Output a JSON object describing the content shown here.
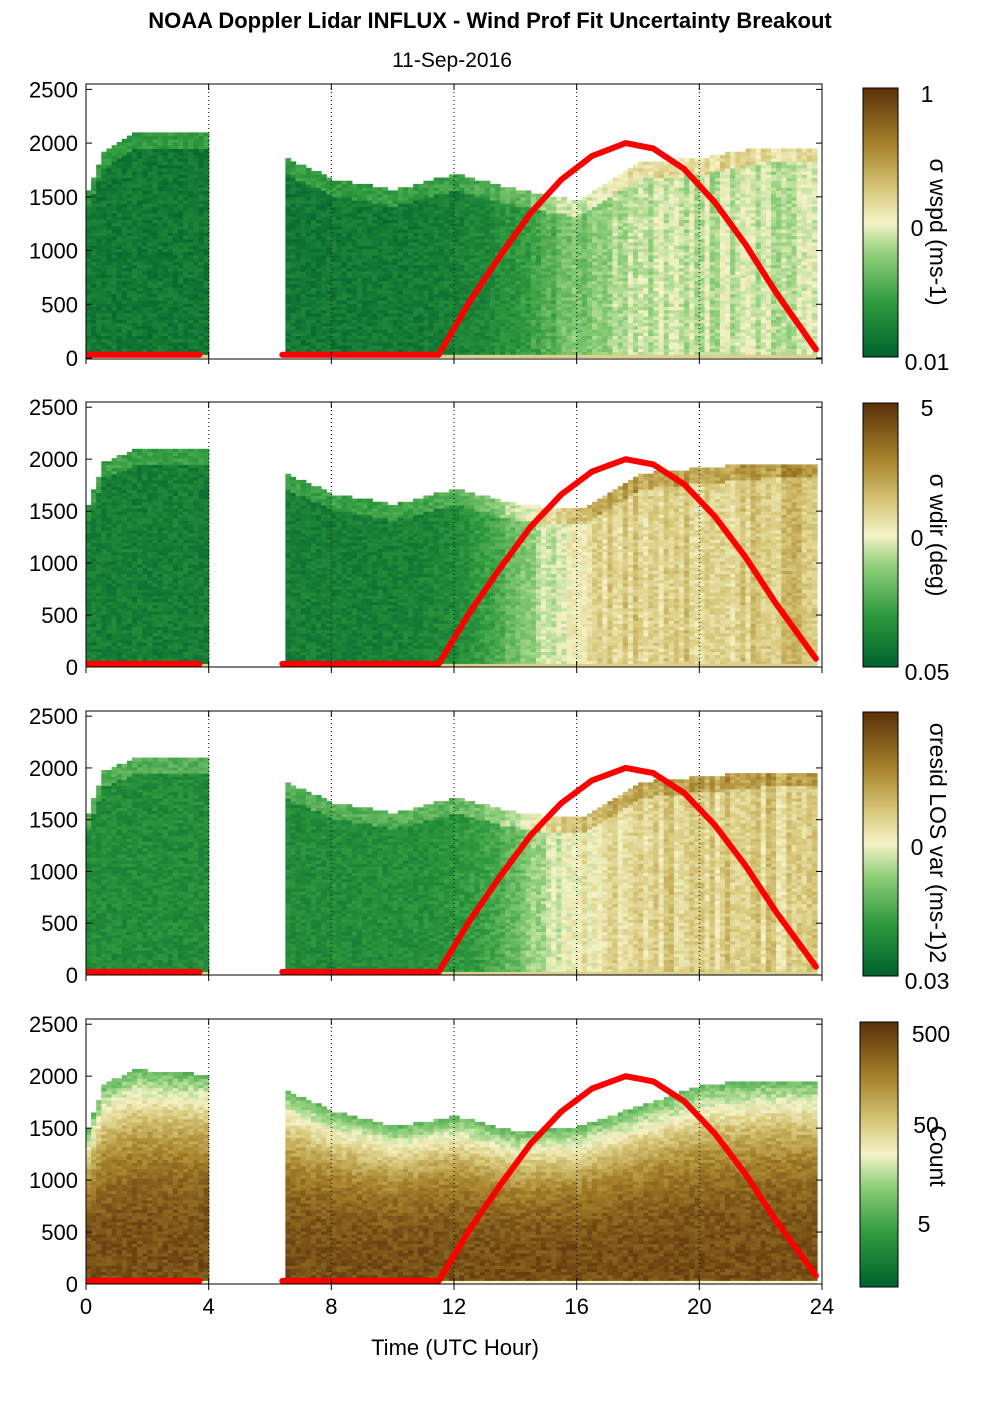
{
  "title": "NOAA Doppler Lidar INFLUX - Wind Prof Fit Uncertainty Breakout",
  "subtitle": "11-Sep-2016",
  "colors": {
    "dark_green": "#00622e",
    "light": "#f5f3c8",
    "dark_brown": "#5a3008",
    "overlay_line": "#ff0000"
  },
  "chart_data": [
    {
      "type": "heatmap",
      "panel": "wspd_uncertainty",
      "cb_label": "σ wspd (ms-1)",
      "cb_ticks": [
        "1",
        "0",
        "0.01"
      ],
      "ylim": [
        0,
        2550
      ],
      "xlim": [
        0,
        24
      ],
      "y_ticks": [
        "2500",
        "2000",
        "1500",
        "1000",
        "500",
        "0"
      ],
      "x_ticks": [
        "0",
        "4",
        "8",
        "12",
        "16",
        "20",
        "24"
      ],
      "grid": "vertical dotted",
      "data_gaps_hours": [
        [
          4.0,
          6.4
        ]
      ],
      "top_height_m": [
        [
          0,
          1550
        ],
        [
          0.5,
          1900
        ],
        [
          1.5,
          2080
        ],
        [
          4.0,
          2080
        ],
        [
          6.4,
          1850
        ],
        [
          8,
          1650
        ],
        [
          10,
          1550
        ],
        [
          12,
          1700
        ],
        [
          14,
          1550
        ],
        [
          16,
          1450
        ],
        [
          18,
          1800
        ],
        [
          20,
          1850
        ],
        [
          22,
          1950
        ],
        [
          23.8,
          1950
        ]
      ],
      "level_shape": "sigmoid",
      "level_low": 0.08,
      "level_high": 0.45,
      "level_mid": 15.0,
      "level_width": 1.2
    },
    {
      "type": "heatmap",
      "panel": "wdir_uncertainty",
      "cb_label": "σ wdir (deg)",
      "cb_ticks": [
        "5",
        "0",
        "0.05"
      ],
      "ylim": [
        0,
        2550
      ],
      "xlim": [
        0,
        24
      ],
      "y_ticks": [
        "2500",
        "2000",
        "1500",
        "1000",
        "500",
        "0"
      ],
      "x_ticks": [
        "0",
        "4",
        "8",
        "12",
        "16",
        "20",
        "24"
      ],
      "grid": "vertical dotted",
      "data_gaps_hours": [
        [
          4.0,
          6.4
        ]
      ],
      "top_height_m": [
        [
          0,
          1550
        ],
        [
          0.5,
          1950
        ],
        [
          1.5,
          2080
        ],
        [
          4.0,
          2080
        ],
        [
          6.4,
          1850
        ],
        [
          8,
          1650
        ],
        [
          10,
          1550
        ],
        [
          12,
          1700
        ],
        [
          14,
          1550
        ],
        [
          16,
          1500
        ],
        [
          18,
          1850
        ],
        [
          20,
          1900
        ],
        [
          22,
          1950
        ],
        [
          23.8,
          1950
        ]
      ],
      "level_shape": "sigmoid",
      "level_low": 0.1,
      "level_high": 0.62,
      "level_mid": 14.2,
      "level_width": 1.0
    },
    {
      "type": "heatmap",
      "panel": "resid_los_variance",
      "cb_label": "σresid LOS var (ms-1)2",
      "cb_ticks": [
        "0",
        "0.03"
      ],
      "ylim": [
        0,
        2550
      ],
      "xlim": [
        0,
        24
      ],
      "y_ticks": [
        "2500",
        "2000",
        "1500",
        "1000",
        "500",
        "0"
      ],
      "x_ticks": [
        "0",
        "4",
        "8",
        "12",
        "16",
        "20",
        "24"
      ],
      "grid": "vertical dotted",
      "data_gaps_hours": [
        [
          4.0,
          6.4
        ]
      ],
      "top_height_m": [
        [
          0,
          1550
        ],
        [
          0.5,
          1950
        ],
        [
          1.5,
          2080
        ],
        [
          4.0,
          2080
        ],
        [
          6.4,
          1850
        ],
        [
          8,
          1650
        ],
        [
          10,
          1550
        ],
        [
          12,
          1700
        ],
        [
          14,
          1550
        ],
        [
          16,
          1500
        ],
        [
          18,
          1850
        ],
        [
          20,
          1900
        ],
        [
          22,
          1950
        ],
        [
          23.8,
          1950
        ]
      ],
      "level_shape": "sigmoid",
      "level_low": 0.15,
      "level_high": 0.6,
      "level_mid": 14.5,
      "level_width": 1.0
    },
    {
      "type": "heatmap",
      "panel": "count",
      "cb_label": "Count",
      "cb_ticks": [
        "500",
        "50",
        "5"
      ],
      "ylim": [
        0,
        2550
      ],
      "xlim": [
        0,
        24
      ],
      "y_ticks": [
        "2500",
        "2000",
        "1500",
        "1000",
        "500",
        "0"
      ],
      "x_ticks": [
        "0",
        "4",
        "8",
        "12",
        "16",
        "20",
        "24"
      ],
      "xlabel": "Time (UTC Hour)",
      "grid": "vertical dotted",
      "data_gaps_hours": [
        [
          4.0,
          6.4
        ]
      ],
      "top_height_m": [
        [
          0,
          1500
        ],
        [
          0.5,
          1900
        ],
        [
          1.5,
          2050
        ],
        [
          4.0,
          2000
        ],
        [
          6.4,
          1850
        ],
        [
          8,
          1650
        ],
        [
          10,
          1500
        ],
        [
          12,
          1600
        ],
        [
          14,
          1450
        ],
        [
          16,
          1500
        ],
        [
          18,
          1700
        ],
        [
          20,
          1900
        ],
        [
          22,
          1950
        ],
        [
          23.8,
          1950
        ]
      ],
      "level_shape": "count",
      "level_low": 0.92,
      "level_high": 0.3
    }
  ],
  "overlay_curve": {
    "description_visible": false,
    "points": [
      [
        0.0,
        30
      ],
      [
        4.0,
        30
      ],
      [
        6.4,
        30
      ],
      [
        11.5,
        30
      ],
      [
        12.5,
        520
      ],
      [
        13.5,
        950
      ],
      [
        14.5,
        1350
      ],
      [
        15.5,
        1660
      ],
      [
        16.5,
        1880
      ],
      [
        17.6,
        2000
      ],
      [
        18.5,
        1950
      ],
      [
        19.5,
        1760
      ],
      [
        20.5,
        1450
      ],
      [
        21.5,
        1060
      ],
      [
        22.5,
        610
      ],
      [
        23.8,
        80
      ]
    ],
    "flat_segments": [
      [
        0.0,
        3.7
      ],
      [
        6.4,
        11.5
      ]
    ]
  }
}
